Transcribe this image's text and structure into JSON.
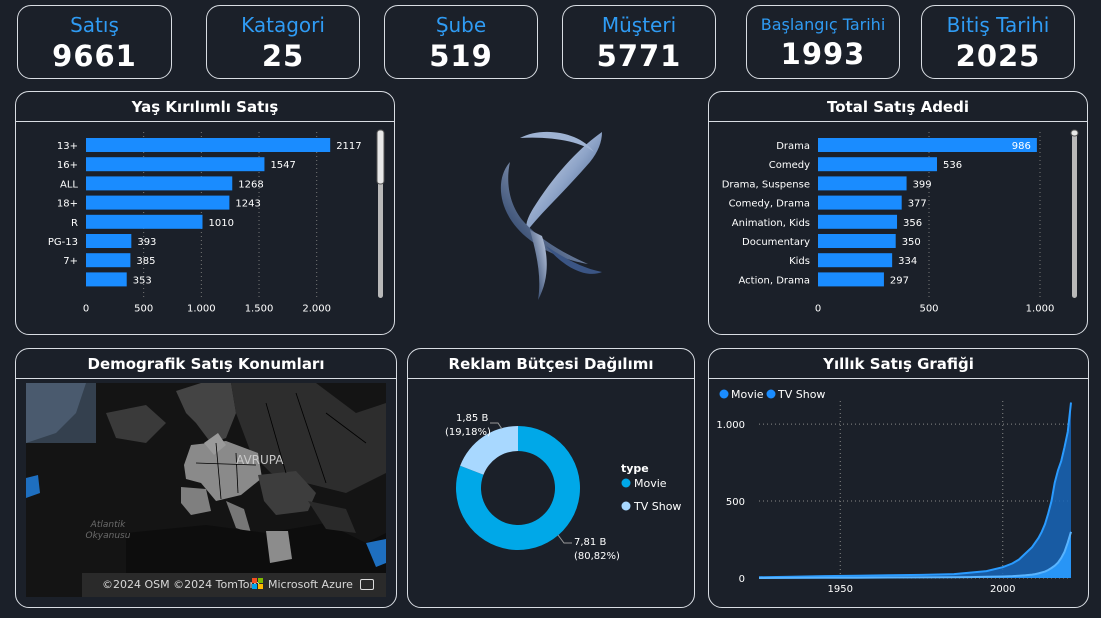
{
  "kpis": [
    {
      "label": "Satış",
      "value": "9661"
    },
    {
      "label": "Katagori",
      "value": "25"
    },
    {
      "label": "Şube",
      "value": "519"
    },
    {
      "label": "Müşteri",
      "value": "5771"
    },
    {
      "label": "Başlangıç Tarihi",
      "value": "1993"
    },
    {
      "label": "Bitiş Tarihi",
      "value": "2025"
    }
  ],
  "colors": {
    "accent": "#2f9bf3",
    "bar": "#1a8cff",
    "background": "#1b2029",
    "pie_movie": "#00a8e8",
    "pie_tv": "#a8d8ff"
  },
  "map_panel": {
    "title": "Demografik Satış Konumları",
    "region_label": "AVRUPA",
    "ocean_label": "Atlantik Okyanusu",
    "attribution": "©2024 OSM ©2024 TomTom",
    "provider": "Microsoft Azure"
  },
  "chart_data": [
    {
      "id": "age",
      "type": "bar",
      "orientation": "horizontal",
      "title": "Yaş Kırılımlı Satış",
      "categories": [
        "13+",
        "16+",
        "ALL",
        "18+",
        "R",
        "PG-13",
        "7+",
        ""
      ],
      "values": [
        2117,
        1547,
        1268,
        1243,
        1010,
        393,
        385,
        353
      ],
      "xlim": [
        0,
        2150
      ],
      "xticks": [
        0,
        500,
        1000,
        1500,
        2000
      ],
      "xtick_labels": [
        "0",
        "500",
        "1.000",
        "1.500",
        "2.000"
      ]
    },
    {
      "id": "genre",
      "type": "bar",
      "orientation": "horizontal",
      "title": "Total Satış Adedi",
      "categories": [
        "Drama",
        "Comedy",
        "Drama, Suspense",
        "Comedy, Drama",
        "Animation, Kids",
        "Documentary",
        "Kids",
        "Action, Drama"
      ],
      "values": [
        986,
        536,
        399,
        377,
        356,
        350,
        334,
        297
      ],
      "xlim": [
        0,
        1000
      ],
      "xticks": [
        0,
        500,
        1000
      ],
      "xtick_labels": [
        "0",
        "500",
        "1.000"
      ]
    },
    {
      "id": "budget",
      "type": "pie",
      "title": "Reklam Bütçesi Dağılımı",
      "legend_title": "type",
      "slices": [
        {
          "name": "Movie",
          "value": 7.81,
          "label": "7,81 B",
          "pct": "(80,82%)"
        },
        {
          "name": "TV Show",
          "value": 1.85,
          "label": "1,85 B",
          "pct": "(19,18%)"
        }
      ]
    },
    {
      "id": "yearly",
      "type": "area",
      "title": "Yıllık Satış Grafiği",
      "legend": [
        "Movie",
        "TV Show"
      ],
      "xlim": [
        1925,
        2021
      ],
      "ylim": [
        0,
        1150
      ],
      "xticks": [
        1950,
        2000
      ],
      "yticks": [
        0,
        500,
        1000
      ],
      "ytick_labels": [
        "0",
        "500",
        "1.000"
      ],
      "series": [
        {
          "name": "Movie",
          "x": [
            1925,
            1935,
            1945,
            1955,
            1965,
            1975,
            1985,
            1990,
            1995,
            2000,
            2003,
            2005,
            2007,
            2009,
            2010,
            2011,
            2012,
            2013,
            2014,
            2015,
            2016,
            2017,
            2018,
            2019,
            2020,
            2021
          ],
          "y": [
            5,
            8,
            12,
            15,
            18,
            20,
            25,
            35,
            45,
            70,
            95,
            120,
            160,
            200,
            230,
            260,
            300,
            350,
            420,
            500,
            620,
            700,
            760,
            850,
            950,
            1140
          ]
        },
        {
          "name": "TV Show",
          "x": [
            1925,
            1935,
            1945,
            1955,
            1965,
            1975,
            1985,
            1990,
            1995,
            2000,
            2003,
            2005,
            2007,
            2009,
            2010,
            2011,
            2012,
            2013,
            2014,
            2015,
            2016,
            2017,
            2018,
            2019,
            2020,
            2021
          ],
          "y": [
            0,
            1,
            2,
            2,
            3,
            4,
            5,
            6,
            8,
            10,
            12,
            15,
            18,
            22,
            25,
            30,
            36,
            42,
            52,
            65,
            80,
            100,
            130,
            170,
            230,
            300
          ]
        }
      ]
    }
  ]
}
